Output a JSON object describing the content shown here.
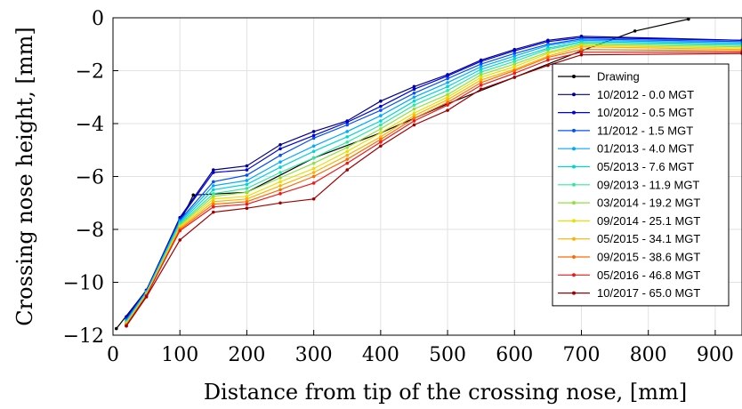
{
  "chart_data": {
    "type": "line",
    "xlabel": "Distance from tip of the crossing nose, [mm]",
    "ylabel": "Crossing nose height, [mm]",
    "xlim": [
      0,
      940
    ],
    "ylim": [
      -12,
      0
    ],
    "xticks": [
      0,
      100,
      200,
      300,
      400,
      500,
      600,
      700,
      800,
      900
    ],
    "yticks": [
      0,
      -2,
      -4,
      -6,
      -8,
      -10,
      -12
    ],
    "grid": true,
    "legend_position": "right",
    "series": [
      {
        "name": "Drawing",
        "color": "#000000",
        "x": [
          5,
          50,
          120,
          200,
          300,
          400,
          500,
          600,
          700,
          780,
          860
        ],
        "y": [
          -11.75,
          -10.3,
          -6.7,
          -6.6,
          -5.3,
          -4.35,
          -3.25,
          -2.25,
          -1.25,
          -0.5,
          -0.05
        ]
      },
      {
        "name": "10/2012 - 0.0 MGT",
        "color": "#00008f",
        "x": [
          20,
          50,
          100,
          150,
          200,
          250,
          300,
          350,
          400,
          450,
          500,
          550,
          600,
          650,
          700,
          940
        ],
        "y": [
          -11.3,
          -10.3,
          -7.55,
          -5.75,
          -5.6,
          -4.8,
          -4.3,
          -3.9,
          -3.15,
          -2.6,
          -2.15,
          -1.6,
          -1.2,
          -0.85,
          -0.7,
          -0.85
        ]
      },
      {
        "name": "10/2012 - 0.5 MGT",
        "color": "#0000e0",
        "x": [
          20,
          50,
          100,
          150,
          200,
          250,
          300,
          350,
          400,
          450,
          500,
          550,
          600,
          650,
          700,
          940
        ],
        "y": [
          -11.35,
          -10.3,
          -7.6,
          -5.85,
          -5.75,
          -4.95,
          -4.45,
          -3.95,
          -3.35,
          -2.7,
          -2.2,
          -1.65,
          -1.25,
          -0.9,
          -0.75,
          -0.85
        ]
      },
      {
        "name": "11/2012 - 1.5 MGT",
        "color": "#0050ff",
        "x": [
          20,
          50,
          100,
          150,
          200,
          250,
          300,
          350,
          400,
          450,
          500,
          550,
          600,
          650,
          700,
          940
        ],
        "y": [
          -11.4,
          -10.35,
          -7.65,
          -6.2,
          -5.95,
          -5.2,
          -4.55,
          -4.05,
          -3.5,
          -2.85,
          -2.3,
          -1.75,
          -1.35,
          -1.0,
          -0.8,
          -0.9
        ]
      },
      {
        "name": "01/2013 - 4.0 MGT",
        "color": "#00a8ff",
        "x": [
          20,
          50,
          100,
          150,
          200,
          250,
          300,
          350,
          400,
          450,
          500,
          550,
          600,
          650,
          700,
          940
        ],
        "y": [
          -11.45,
          -10.35,
          -7.7,
          -6.35,
          -6.15,
          -5.45,
          -4.85,
          -4.3,
          -3.7,
          -3.0,
          -2.45,
          -1.85,
          -1.45,
          -1.05,
          -0.85,
          -0.95
        ]
      },
      {
        "name": "05/2013 - 7.6 MGT",
        "color": "#00d4d4",
        "x": [
          20,
          50,
          100,
          150,
          200,
          250,
          300,
          350,
          400,
          450,
          500,
          550,
          600,
          650,
          700,
          940
        ],
        "y": [
          -11.5,
          -10.4,
          -7.75,
          -6.5,
          -6.3,
          -5.65,
          -5.05,
          -4.5,
          -3.9,
          -3.15,
          -2.6,
          -1.95,
          -1.55,
          -1.15,
          -0.9,
          -1.0
        ]
      },
      {
        "name": "09/2013 - 11.9 MGT",
        "color": "#30e8a0",
        "x": [
          20,
          50,
          100,
          150,
          200,
          250,
          300,
          350,
          400,
          450,
          500,
          550,
          600,
          650,
          700,
          940
        ],
        "y": [
          -11.5,
          -10.4,
          -7.8,
          -6.65,
          -6.45,
          -5.85,
          -5.3,
          -4.7,
          -4.05,
          -3.3,
          -2.75,
          -2.05,
          -1.65,
          -1.2,
          -0.95,
          -1.05
        ]
      },
      {
        "name": "03/2014 - 19.2 MGT",
        "color": "#90e040",
        "x": [
          20,
          50,
          100,
          150,
          200,
          250,
          300,
          350,
          400,
          450,
          500,
          550,
          600,
          650,
          700,
          940
        ],
        "y": [
          -11.55,
          -10.45,
          -7.85,
          -6.75,
          -6.6,
          -6.05,
          -5.5,
          -4.9,
          -4.2,
          -3.45,
          -2.9,
          -2.15,
          -1.75,
          -1.3,
          -1.0,
          -1.1
        ]
      },
      {
        "name": "09/2014 - 25.1 MGT",
        "color": "#e8e000",
        "x": [
          20,
          50,
          100,
          150,
          200,
          250,
          300,
          350,
          400,
          450,
          500,
          550,
          600,
          650,
          700,
          940
        ],
        "y": [
          -11.55,
          -10.45,
          -7.9,
          -6.85,
          -6.75,
          -6.2,
          -5.7,
          -5.05,
          -4.35,
          -3.6,
          -3.0,
          -2.25,
          -1.85,
          -1.35,
          -1.05,
          -1.15
        ]
      },
      {
        "name": "05/2015 - 34.1 MGT",
        "color": "#ffb000",
        "x": [
          20,
          50,
          100,
          150,
          200,
          250,
          300,
          350,
          400,
          450,
          500,
          550,
          600,
          650,
          700,
          940
        ],
        "y": [
          -11.6,
          -10.5,
          -7.95,
          -6.95,
          -6.85,
          -6.35,
          -5.85,
          -5.2,
          -4.5,
          -3.7,
          -3.1,
          -2.35,
          -1.95,
          -1.45,
          -1.1,
          -1.2
        ]
      },
      {
        "name": "09/2015 - 38.6 MGT",
        "color": "#ff6a00",
        "x": [
          20,
          50,
          100,
          150,
          200,
          250,
          300,
          350,
          400,
          450,
          500,
          550,
          600,
          650,
          700,
          940
        ],
        "y": [
          -11.6,
          -10.5,
          -8.0,
          -7.05,
          -6.95,
          -6.5,
          -6.0,
          -5.35,
          -4.6,
          -3.8,
          -3.2,
          -2.45,
          -2.0,
          -1.5,
          -1.2,
          -1.25
        ]
      },
      {
        "name": "05/2016 - 46.8 MGT",
        "color": "#f01818",
        "x": [
          20,
          50,
          100,
          150,
          200,
          250,
          300,
          350,
          400,
          450,
          500,
          550,
          600,
          650,
          700,
          940
        ],
        "y": [
          -11.65,
          -10.5,
          -8.05,
          -7.15,
          -7.05,
          -6.65,
          -6.25,
          -5.5,
          -4.7,
          -3.9,
          -3.3,
          -2.55,
          -2.1,
          -1.6,
          -1.3,
          -1.3
        ]
      },
      {
        "name": "10/2017 - 65.0 MGT",
        "color": "#a00000",
        "x": [
          20,
          50,
          100,
          150,
          200,
          250,
          300,
          350,
          400,
          450,
          500,
          550,
          600,
          650,
          700,
          940
        ],
        "y": [
          -11.65,
          -10.55,
          -8.4,
          -7.35,
          -7.2,
          -7.0,
          -6.85,
          -5.75,
          -4.85,
          -4.05,
          -3.5,
          -2.7,
          -2.25,
          -1.8,
          -1.4,
          -1.35
        ]
      }
    ]
  }
}
